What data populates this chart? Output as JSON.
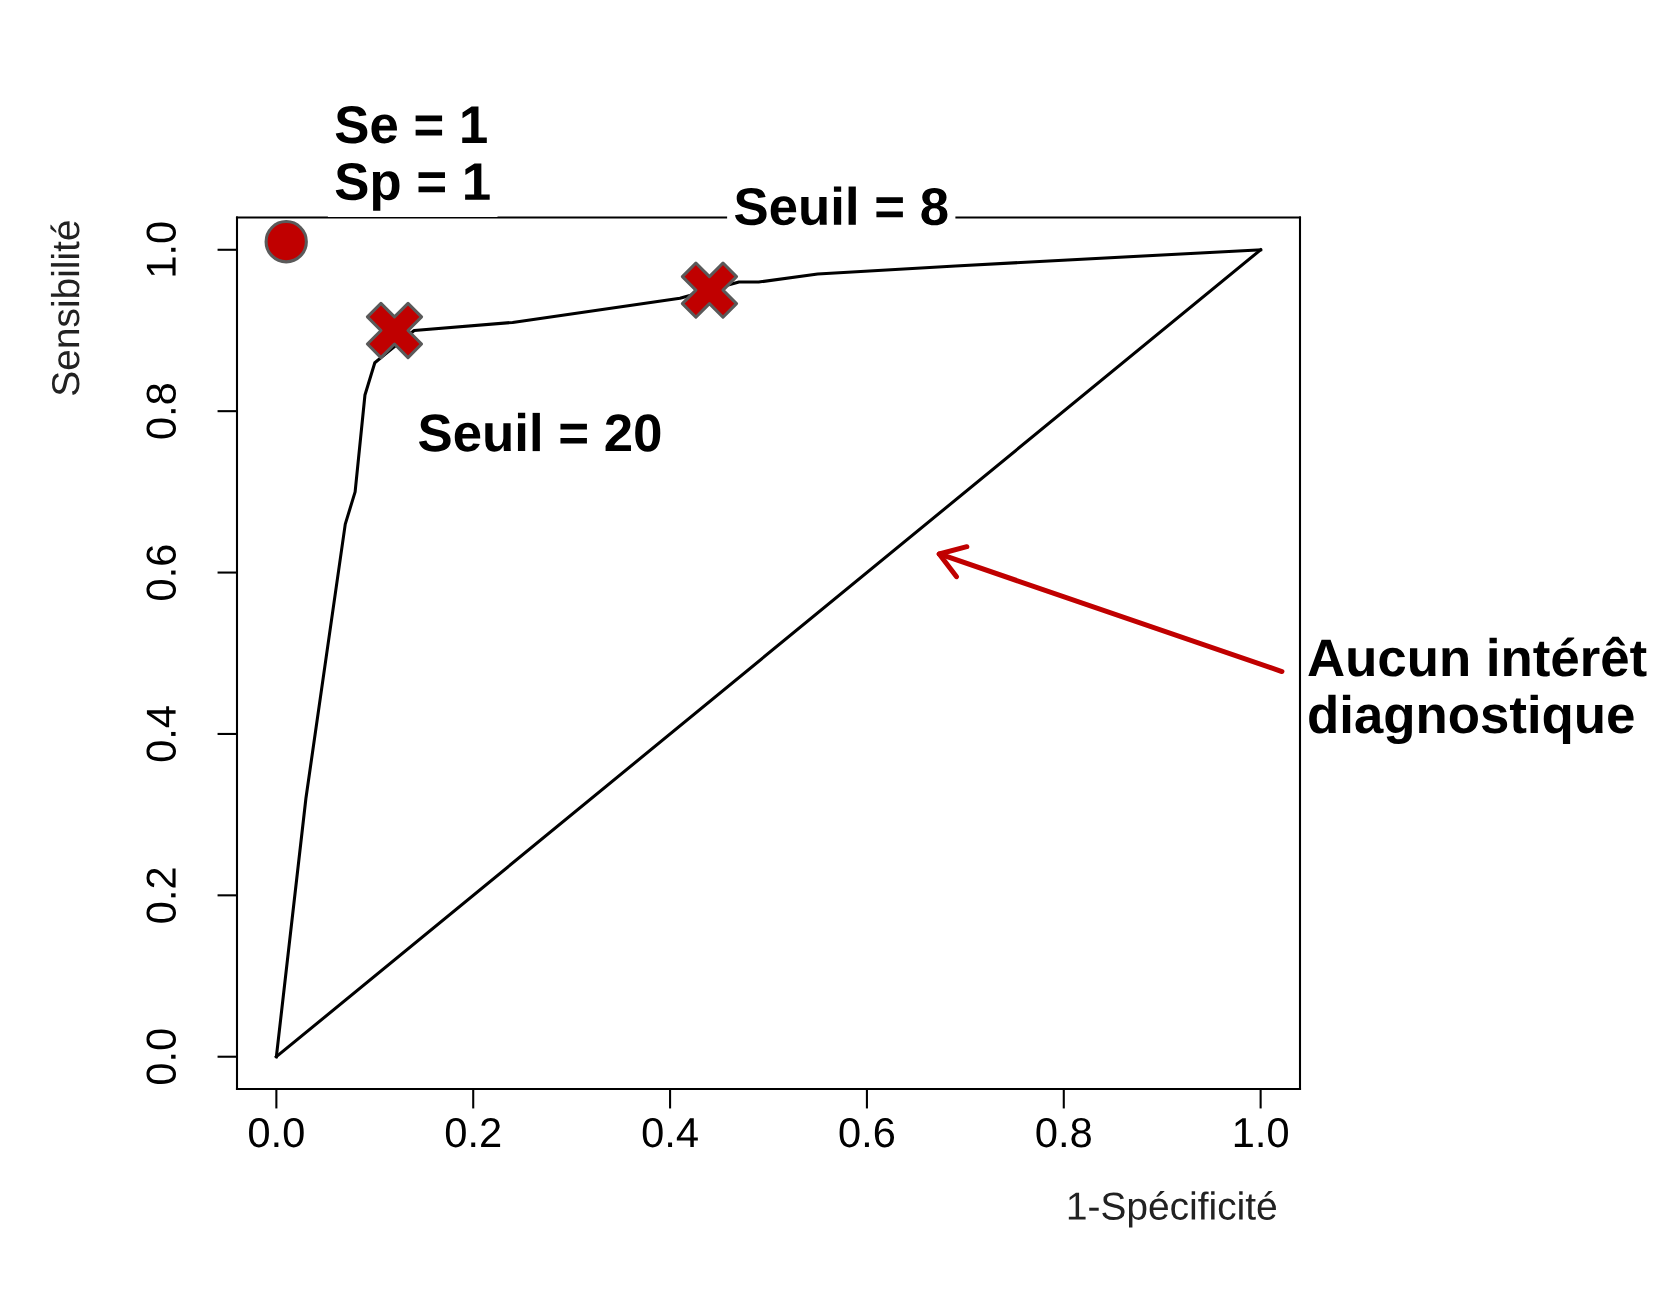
{
  "chart_data": {
    "type": "line",
    "xlabel": "1-Spécificité",
    "ylabel": "Sensibilité",
    "xlim": [
      -0.04,
      1.04
    ],
    "ylim": [
      -0.04,
      1.04
    ],
    "xticks": [
      {
        "value": 0,
        "label": "0.0"
      },
      0.2,
      0.4,
      0.6,
      0.8,
      {
        "value": 1,
        "label": "1.0"
      }
    ],
    "yticks": [
      {
        "value": 0,
        "label": "0.0"
      },
      0.2,
      0.4,
      0.6,
      0.8,
      {
        "value": 1,
        "label": "1.0"
      }
    ],
    "series": [
      {
        "color": "#000000",
        "x": [
          0,
          0.03,
          0.07,
          0.08,
          0.09,
          0.1,
          0.11,
          0.14,
          0.24,
          0.41,
          0.47,
          0.49,
          0.55,
          0.69,
          1
        ],
        "values": [
          0,
          0.32,
          0.66,
          0.7,
          0.82,
          0.86,
          0.87,
          0.9,
          0.91,
          0.94,
          0.96,
          0.96,
          0.97,
          0.98,
          1
        ]
      },
      {
        "color": "#000000",
        "x": [
          0,
          1
        ],
        "values": [
          0,
          1
        ]
      },
      {
        "type": "scatter",
        "color": "#c00000",
        "marker": "cross",
        "x": [
          0.12,
          0.44
        ],
        "values": [
          0.9,
          0.95
        ]
      },
      {
        "type": "scatter",
        "color": "#c00000",
        "marker": "circle",
        "x": [
          0.01
        ],
        "values": [
          1.01
        ]
      }
    ],
    "annotations": [
      {
        "text": "Se = 1\nSp = 1",
        "x": 0.01,
        "y": 1.01
      },
      {
        "text": "Seuil = 8",
        "x": 0.44,
        "y": 0.95
      },
      {
        "text": "Seuil = 20",
        "x": 0.12,
        "y": 0.9
      },
      "Aucun intérêt\ndiagnostique"
    ]
  }
}
